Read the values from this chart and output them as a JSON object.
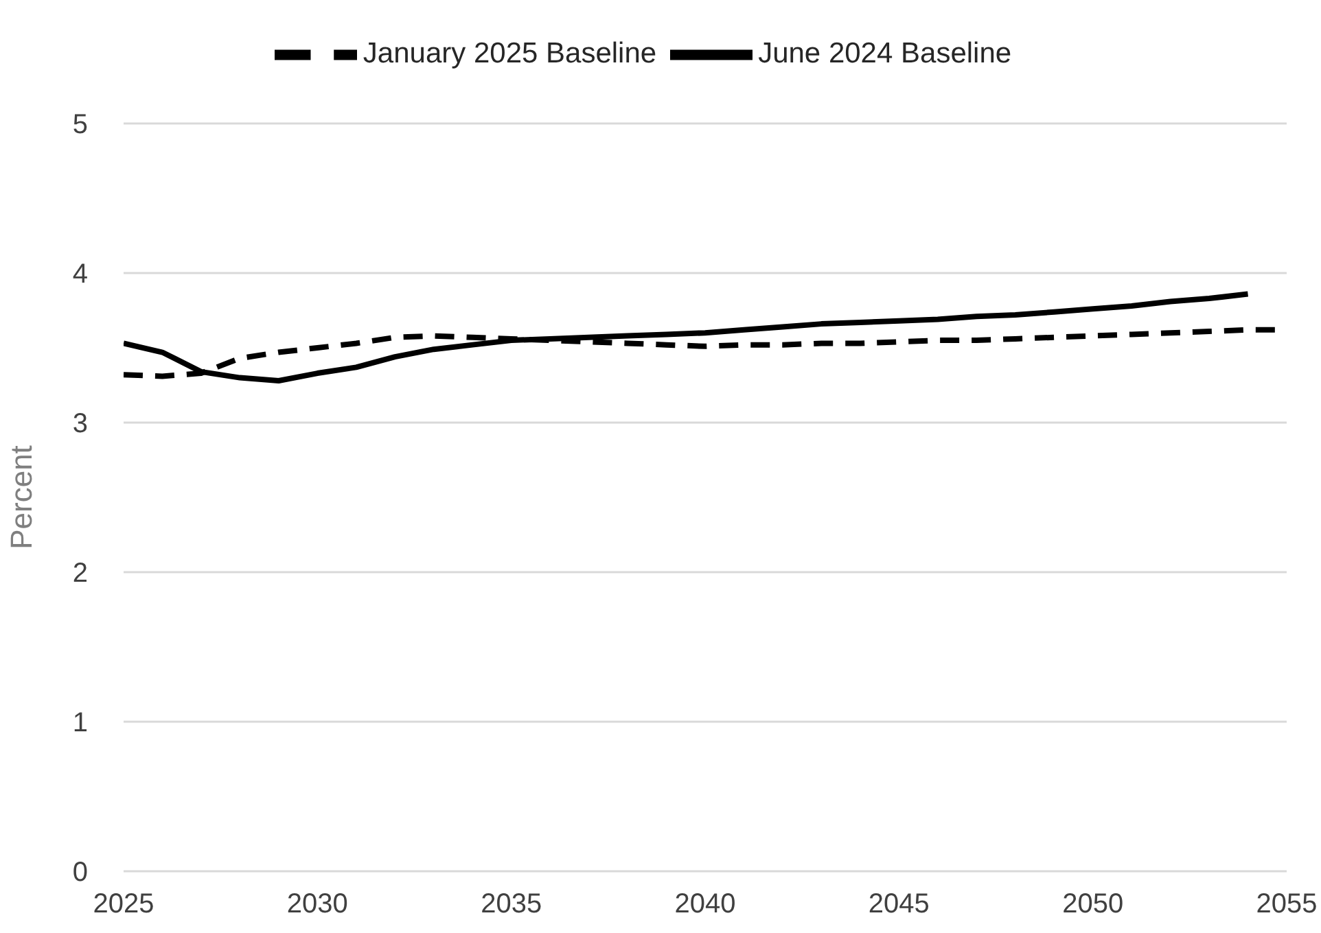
{
  "chart_data": {
    "type": "line",
    "ylabel": "Percent",
    "x": [
      2025,
      2026,
      2027,
      2028,
      2029,
      2030,
      2031,
      2032,
      2033,
      2034,
      2035,
      2036,
      2037,
      2038,
      2039,
      2040,
      2041,
      2042,
      2043,
      2044,
      2045,
      2046,
      2047,
      2048,
      2049,
      2050,
      2051,
      2052,
      2053,
      2054,
      2055
    ],
    "series": [
      {
        "name": "January 2025 Baseline",
        "color": "#000000",
        "line_style": "dashed",
        "values": [
          3.32,
          3.31,
          3.33,
          3.43,
          3.47,
          3.5,
          3.53,
          3.57,
          3.58,
          3.57,
          3.56,
          3.55,
          3.54,
          3.53,
          3.52,
          3.51,
          3.52,
          3.52,
          3.53,
          3.53,
          3.54,
          3.55,
          3.55,
          3.56,
          3.57,
          3.58,
          3.59,
          3.6,
          3.61,
          3.62,
          3.62
        ]
      },
      {
        "name": "June 2024 Baseline",
        "color": "#000000",
        "line_style": "solid",
        "values": [
          3.53,
          3.47,
          3.34,
          3.3,
          3.28,
          3.33,
          3.37,
          3.44,
          3.49,
          3.52,
          3.55,
          3.56,
          3.57,
          3.58,
          3.59,
          3.6,
          3.62,
          3.64,
          3.66,
          3.67,
          3.68,
          3.69,
          3.71,
          3.72,
          3.74,
          3.76,
          3.78,
          3.81,
          3.83,
          3.86,
          null
        ]
      }
    ],
    "xlim": [
      2025,
      2055
    ],
    "xticks": [
      2025,
      2030,
      2035,
      2040,
      2045,
      2050,
      2055
    ],
    "ylim": [
      0,
      5
    ],
    "yticks": [
      0,
      1,
      2,
      3,
      4,
      5
    ],
    "grid": "y",
    "legend": "top",
    "marker": "none"
  }
}
